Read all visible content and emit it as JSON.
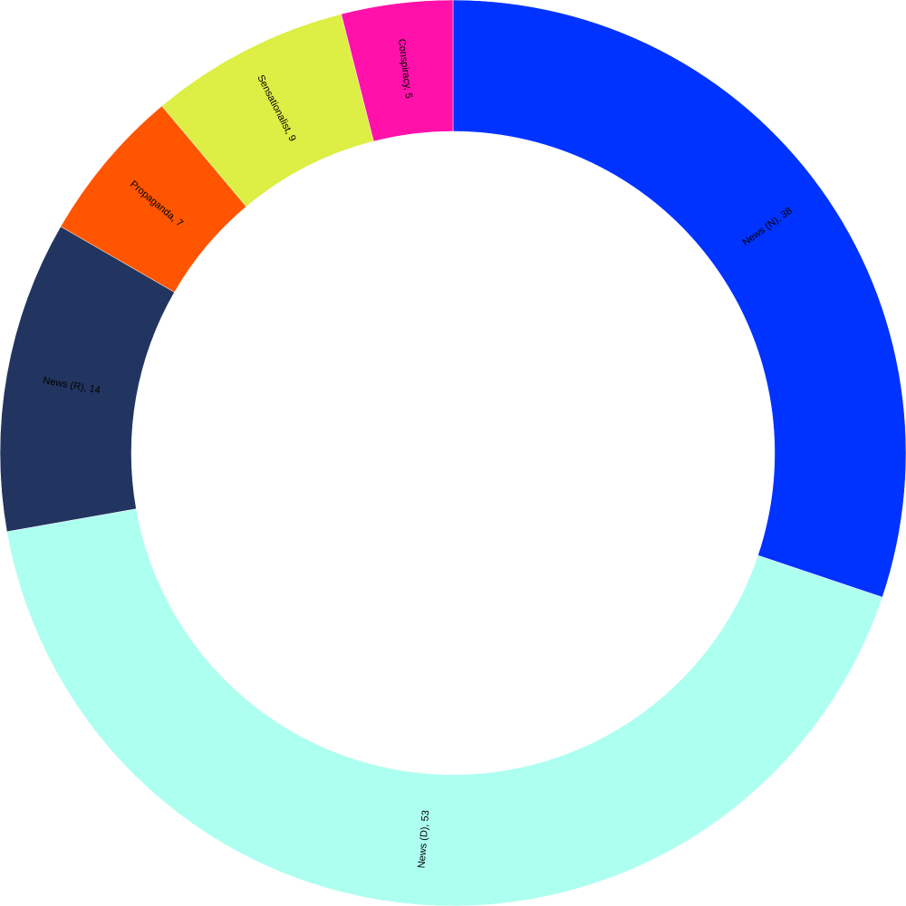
{
  "chart_data": {
    "type": "donut",
    "values": [
      38,
      53,
      14,
      7,
      9,
      5
    ],
    "value_labels": [
      "News (N), 38",
      "News (D), 53",
      "News (R), 14",
      "Propaganda, 7",
      "Sensationalist, 9",
      "Conspiracy, 5"
    ],
    "colors": [
      "#0033ff",
      "#adfff0",
      "#223560",
      "#ff5500",
      "#ddee44",
      "#ff11aa"
    ]
  }
}
